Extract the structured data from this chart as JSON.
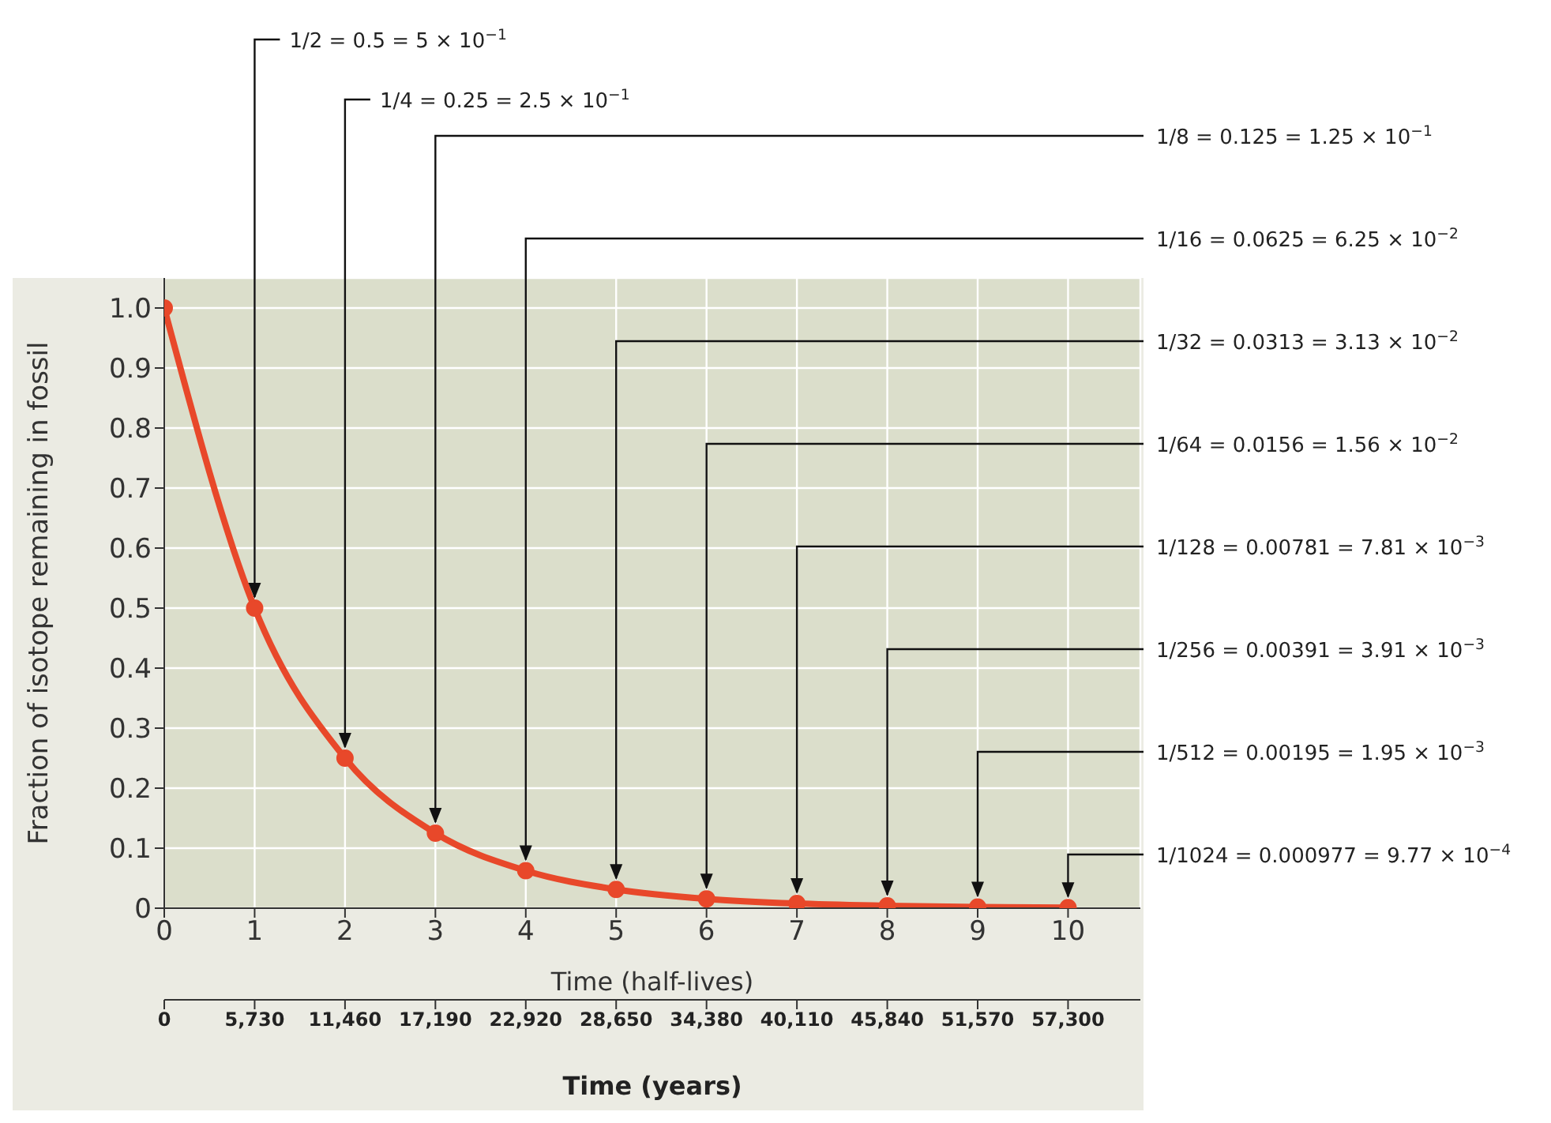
{
  "chart_data": {
    "type": "line",
    "xlabel": "Time (half-lives)",
    "ylabel": "Fraction of isotope remaining in fossil",
    "x2label": "Time (years)",
    "x": [
      0,
      1,
      2,
      3,
      4,
      5,
      6,
      7,
      8,
      9,
      10
    ],
    "values": [
      1,
      0.5,
      0.25,
      0.125,
      0.0625,
      0.0313,
      0.0156,
      0.00781,
      0.00391,
      0.00195,
      0.000977
    ],
    "color": "#e8482a",
    "marker": "circle",
    "grid": true,
    "xlim": [
      0,
      10.8
    ],
    "xticks": [
      0,
      1,
      2,
      3,
      4,
      5,
      6,
      7,
      8,
      9,
      10
    ],
    "ylim": [
      0,
      1.05
    ],
    "yticks": [
      0,
      0.1,
      0.2,
      0.3,
      0.4,
      0.5,
      0.6,
      0.7,
      0.8,
      0.9,
      {
        "value": 1,
        "label": "1.0"
      }
    ],
    "x2lim": [
      0,
      61884
    ],
    "x2ticks": [
      0,
      {
        "value": 5730,
        "label": "5,730"
      },
      {
        "value": 11460,
        "label": "11,460"
      },
      {
        "value": 17190,
        "label": "17,190"
      },
      {
        "value": 22920,
        "label": "22,920"
      },
      {
        "value": 28650,
        "label": "28,650"
      },
      {
        "value": 34380,
        "label": "34,380"
      },
      {
        "value": 40110,
        "label": "40,110"
      },
      {
        "value": 45840,
        "label": "45,840"
      },
      {
        "value": 51570,
        "label": "51,570"
      },
      {
        "value": 57300,
        "label": "57,300"
      }
    ],
    "annotations": [
      {
        "text": "1/2 = 0.5 = 5 × 10$^{−1}$",
        "x": 1,
        "y": 0.5
      },
      {
        "text": "1/4 = 0.25 = 2.5 × 10$^{−1}$",
        "x": 2,
        "y": 0.25
      },
      {
        "text": "1/8 = 0.125 = 1.25 × 10$^{−1}$",
        "x": 3,
        "y": 0.125
      },
      {
        "text": "1/16 = 0.0625 = 6.25 × 10$^{−2}$",
        "x": 4,
        "y": 0.0625
      },
      {
        "text": "1/32 = 0.0313 = 3.13 × 10$^{−2}$",
        "x": 5,
        "y": 0.0313
      },
      {
        "text": "1/64 = 0.0156 = 1.56 × 10$^{−2}$",
        "x": 6,
        "y": 0.0156
      },
      {
        "text": "1/128 = 0.00781 = 7.81 × 10$^{−3}$",
        "x": 7,
        "y": 0.00781
      },
      {
        "text": "1/256 = 0.00391 = 3.91 × 10$^{−3}$",
        "x": 8,
        "y": 0.00391
      },
      {
        "text": "1/512 = 0.00195 = 1.95 × 10$^{−3}$",
        "x": 9,
        "y": 0.00195
      },
      {
        "text": "1/1024 = 0.000977 = 9.77 × 10$^{−4}$",
        "x": 10,
        "y": 0.000977
      }
    ]
  }
}
